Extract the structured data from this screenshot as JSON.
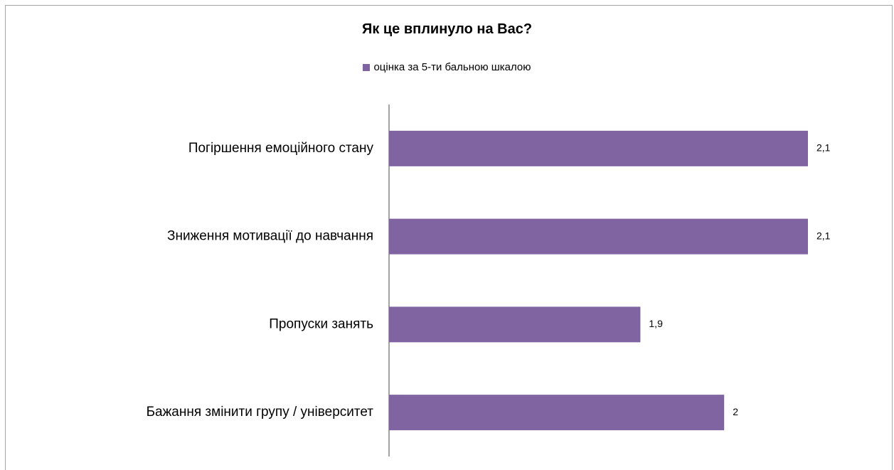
{
  "chart_data": {
    "type": "bar",
    "orientation": "horizontal",
    "title": "Як це вплинуло на Вас?",
    "categories": [
      "Погіршення емоційного стану",
      "Зниження мотивації до навчання",
      "Пропуски занять",
      "Бажання змінити групу / університет"
    ],
    "series": [
      {
        "name": "оцінка за 5-ти бальною шкалою",
        "values": [
          2.1,
          2.1,
          1.9,
          2
        ],
        "labels": [
          "2,1",
          "2,1",
          "1,9",
          "2"
        ],
        "color": "#8064a2"
      }
    ],
    "xlim": [
      1.6,
      2.1
    ],
    "grid": false,
    "legend": "top"
  }
}
